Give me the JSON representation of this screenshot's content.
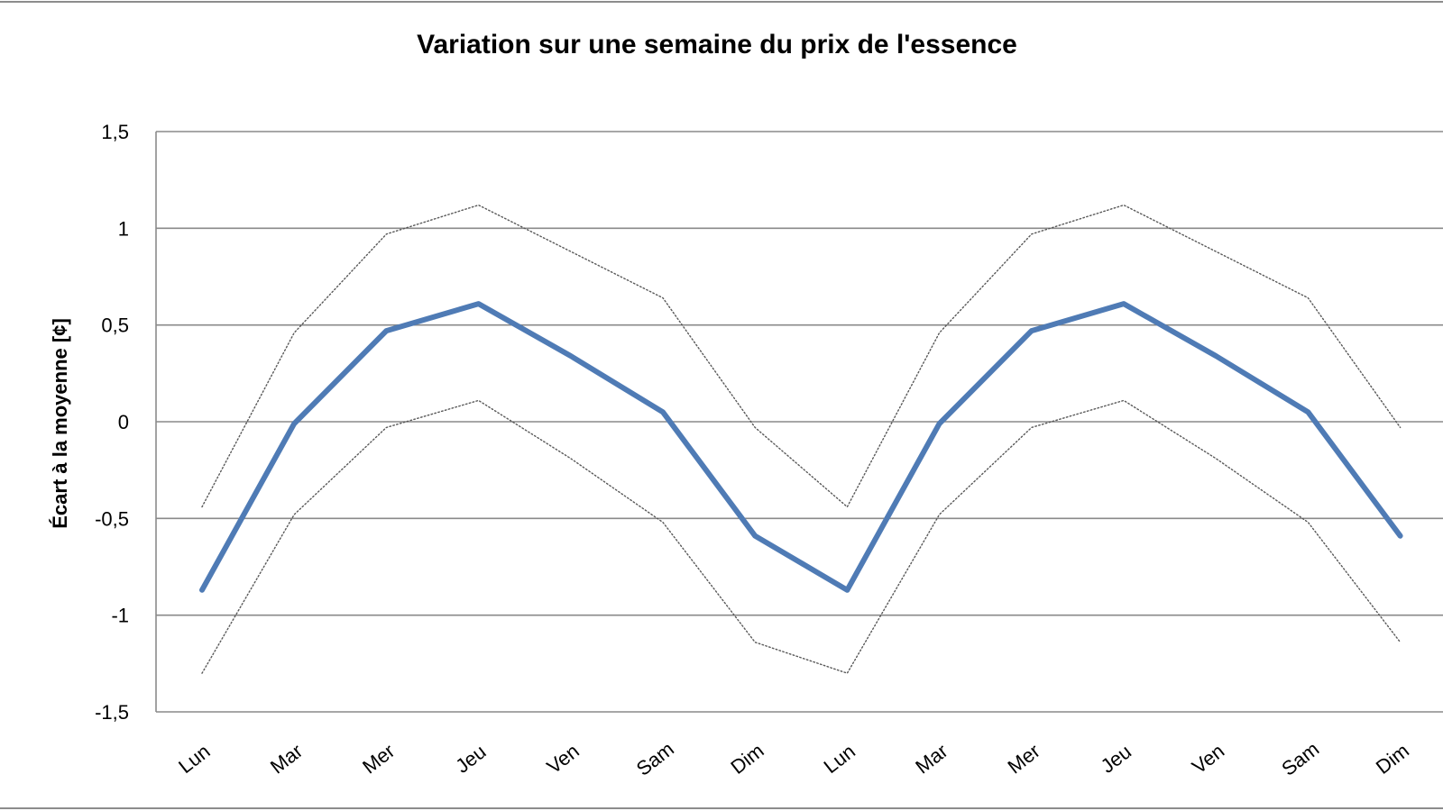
{
  "chart_data": {
    "type": "line",
    "title": "Variation sur une semaine du prix de l'essence",
    "xlabel": "",
    "ylabel": "Écart à la moyenne [¢]",
    "categories": [
      "Lun",
      "Mar",
      "Mer",
      "Jeu",
      "Ven",
      "Sam",
      "Dim",
      "Lun",
      "Mar",
      "Mer",
      "Jeu",
      "Ven",
      "Sam",
      "Dim"
    ],
    "ylim": [
      -1.5,
      1.5
    ],
    "yticks": [
      "1,5",
      "1",
      "0,5",
      "0",
      "-0,5",
      "-1",
      "-1,5"
    ],
    "ytick_values": [
      1.5,
      1,
      0.5,
      0,
      -0.5,
      -1,
      -1.5
    ],
    "grid": "horizontal",
    "series": [
      {
        "values": [
          -0.87,
          -0.01,
          0.47,
          0.61,
          0.34,
          0.05,
          -0.59,
          -0.87,
          -0.01,
          0.47,
          0.61,
          0.34,
          0.05,
          -0.59
        ],
        "color": "#4f7bb5",
        "style": "solid"
      },
      {
        "values": [
          -0.44,
          0.46,
          0.97,
          1.12,
          0.88,
          0.64,
          -0.03,
          -0.44,
          0.46,
          0.97,
          1.12,
          0.88,
          0.64,
          -0.03
        ],
        "color": "#595959",
        "style": "dotted"
      },
      {
        "values": [
          -1.3,
          -0.48,
          -0.03,
          0.11,
          -0.19,
          -0.52,
          -1.14,
          -1.3,
          -0.48,
          -0.03,
          0.11,
          -0.19,
          -0.52,
          -1.14
        ],
        "color": "#595959",
        "style": "dotted"
      }
    ]
  }
}
